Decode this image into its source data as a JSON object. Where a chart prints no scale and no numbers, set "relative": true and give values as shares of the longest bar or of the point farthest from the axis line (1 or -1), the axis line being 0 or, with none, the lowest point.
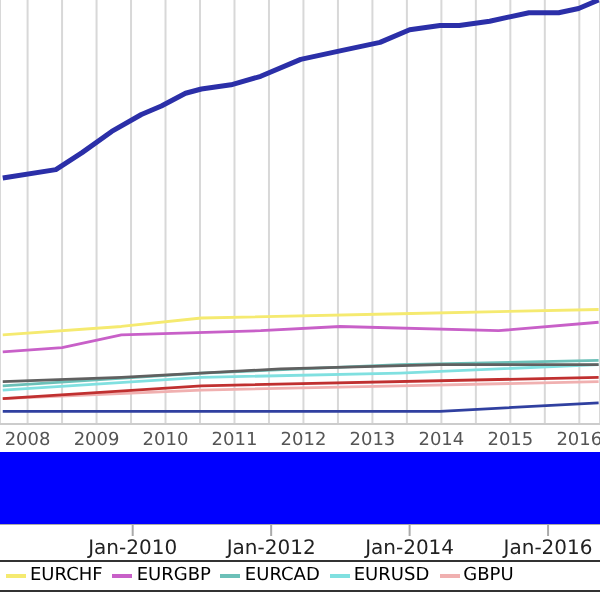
{
  "chart_data": {
    "type": "line",
    "relative": true,
    "grid": "x",
    "legend": "bottom",
    "marker": "none",
    "xlim": [
      2008.1,
      2016.8
    ],
    "xticks": [
      {
        "value": 2008.5,
        "label": "2008"
      },
      {
        "value": 2009,
        "label": null
      },
      {
        "value": 2009.5,
        "label": "2009"
      },
      {
        "value": 2010,
        "label": null
      },
      {
        "value": 2010.5,
        "label": "2010"
      },
      {
        "value": 2011,
        "label": null
      },
      {
        "value": 2011.5,
        "label": "2011"
      },
      {
        "value": 2012,
        "label": null
      },
      {
        "value": 2012.5,
        "label": "2012"
      },
      {
        "value": 2013,
        "label": null
      },
      {
        "value": 2013.5,
        "label": "2013"
      },
      {
        "value": 2014,
        "label": null
      },
      {
        "value": 2014.5,
        "label": "2014"
      },
      {
        "value": 2015,
        "label": null
      },
      {
        "value": 2015.5,
        "label": "2015"
      },
      {
        "value": 2016,
        "label": null
      },
      {
        "value": 2016.5,
        "label": "2016"
      }
    ],
    "x2lim": [
      "2008-02",
      "2016-10"
    ],
    "x2ticks": [
      {
        "value": "2010-01",
        "label": "Jan-2010"
      },
      {
        "value": "2012-01",
        "label": "Jan-2012"
      },
      {
        "value": "2014-01",
        "label": "Jan-2014"
      },
      {
        "value": "2016-01",
        "label": "Jan-2016"
      }
    ],
    "series": [
      {
        "color": "#2b2fa8",
        "x": [
          2008.14,
          2008.91,
          2009.29,
          2009.72,
          2010.15,
          2010.44,
          2010.79,
          2011.02,
          2011.45,
          2011.88,
          2012.46,
          2013.03,
          2013.61,
          2014.04,
          2014.48,
          2014.76,
          2015.2,
          2015.77,
          2016.2,
          2016.49,
          2016.78
        ],
        "values": [
          0.58,
          0.6,
          0.64,
          0.69,
          0.73,
          0.75,
          0.78,
          0.79,
          0.8,
          0.82,
          0.86,
          0.88,
          0.9,
          0.93,
          0.94,
          0.94,
          0.95,
          0.97,
          0.97,
          0.98,
          1
        ]
      },
      {
        "name": "EURCHF",
        "color": "#f5ea70",
        "x": [
          2008.14,
          2009.86,
          2011.02,
          2013.9,
          2016.78
        ],
        "values": [
          0.21,
          0.23,
          0.25,
          0.26,
          0.27
        ]
      },
      {
        "name": "EURGBP",
        "color": "#c860c8",
        "x": [
          2008.14,
          2009,
          2009.86,
          2011.88,
          2013.03,
          2015.33,
          2016.78
        ],
        "values": [
          0.17,
          0.18,
          0.21,
          0.22,
          0.23,
          0.22,
          0.24
        ]
      },
      {
        "name": "EURCAD",
        "color": "#6cc0b8",
        "x": [
          2008.14,
          2011.02,
          2013.9,
          2016.78
        ],
        "values": [
          0.09,
          0.12,
          0.14,
          0.15
        ]
      },
      {
        "name": "EURUSD",
        "color": "#80e0e0",
        "x": [
          2008.14,
          2011.02,
          2013.9,
          2016.78
        ],
        "values": [
          0.08,
          0.11,
          0.12,
          0.14
        ]
      },
      {
        "name": "GBPU",
        "color": "#f0b0b0",
        "x": [
          2008.14,
          2011.02,
          2013.9,
          2016.78
        ],
        "values": [
          0.06,
          0.08,
          0.09,
          0.1
        ]
      },
      {
        "color": "#606060",
        "x": [
          2008.14,
          2009.86,
          2012.17,
          2014.48,
          2016.78
        ],
        "values": [
          0.1,
          0.11,
          0.13,
          0.14,
          0.14
        ]
      },
      {
        "color": "#c03030",
        "x": [
          2008.14,
          2011.02,
          2016.78
        ],
        "values": [
          0.06,
          0.09,
          0.11
        ]
      },
      {
        "color": "#3040a0",
        "x": [
          2008.14,
          2014.48,
          2016.78
        ],
        "values": [
          0.03,
          0.03,
          0.05
        ]
      }
    ]
  }
}
